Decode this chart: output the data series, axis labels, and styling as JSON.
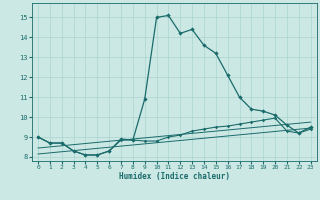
{
  "title": "",
  "xlabel": "Humidex (Indice chaleur)",
  "ylabel": "",
  "xlim": [
    -0.5,
    23.5
  ],
  "ylim": [
    7.8,
    15.7
  ],
  "yticks": [
    8,
    9,
    10,
    11,
    12,
    13,
    14,
    15
  ],
  "xticks": [
    0,
    1,
    2,
    3,
    4,
    5,
    6,
    7,
    8,
    9,
    10,
    11,
    12,
    13,
    14,
    15,
    16,
    17,
    18,
    19,
    20,
    21,
    22,
    23
  ],
  "bg_color": "#cce8e4",
  "line_color": "#1a6b6b",
  "grid_color": "#aad4d0",
  "line1_x": [
    0,
    1,
    2,
    3,
    4,
    5,
    6,
    7,
    8,
    9,
    10,
    11,
    12,
    13,
    14,
    15,
    16,
    17,
    18,
    19,
    20,
    21,
    22,
    23
  ],
  "line1_y": [
    9.0,
    8.7,
    8.7,
    8.3,
    8.1,
    8.1,
    8.3,
    8.9,
    8.85,
    10.9,
    15.0,
    15.1,
    14.2,
    14.4,
    13.6,
    13.2,
    12.1,
    11.0,
    10.4,
    10.3,
    10.1,
    9.6,
    9.2,
    9.5
  ],
  "line2_x": [
    0,
    1,
    2,
    3,
    4,
    5,
    6,
    7,
    8,
    9,
    10,
    11,
    12,
    13,
    14,
    15,
    16,
    17,
    18,
    19,
    20,
    21,
    22,
    23
  ],
  "line2_y": [
    9.0,
    8.7,
    8.7,
    8.3,
    8.1,
    8.1,
    8.3,
    8.85,
    8.85,
    8.8,
    8.8,
    9.0,
    9.1,
    9.3,
    9.4,
    9.5,
    9.55,
    9.65,
    9.75,
    9.85,
    9.95,
    9.3,
    9.2,
    9.4
  ],
  "line3_x": [
    0,
    23
  ],
  "line3_y": [
    8.15,
    9.45
  ],
  "line4_x": [
    0,
    23
  ],
  "line4_y": [
    8.45,
    9.75
  ]
}
